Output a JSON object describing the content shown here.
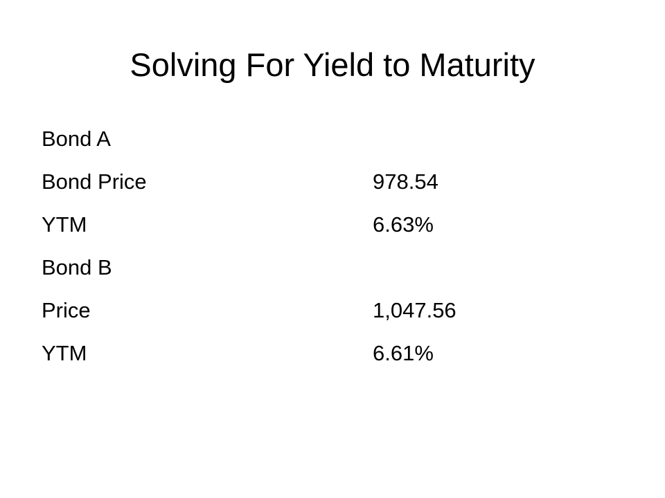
{
  "slide": {
    "title": "Solving For Yield to Maturity",
    "rows": [
      {
        "label": "Bond A",
        "value": ""
      },
      {
        "label": "Bond Price",
        "value": "978.54"
      },
      {
        "label": "YTM",
        "value": "6.63%"
      },
      {
        "label": "Bond B",
        "value": ""
      },
      {
        "label": "Price",
        "value": "1,047.56"
      },
      {
        "label": "YTM",
        "value": "6.61%"
      }
    ]
  }
}
